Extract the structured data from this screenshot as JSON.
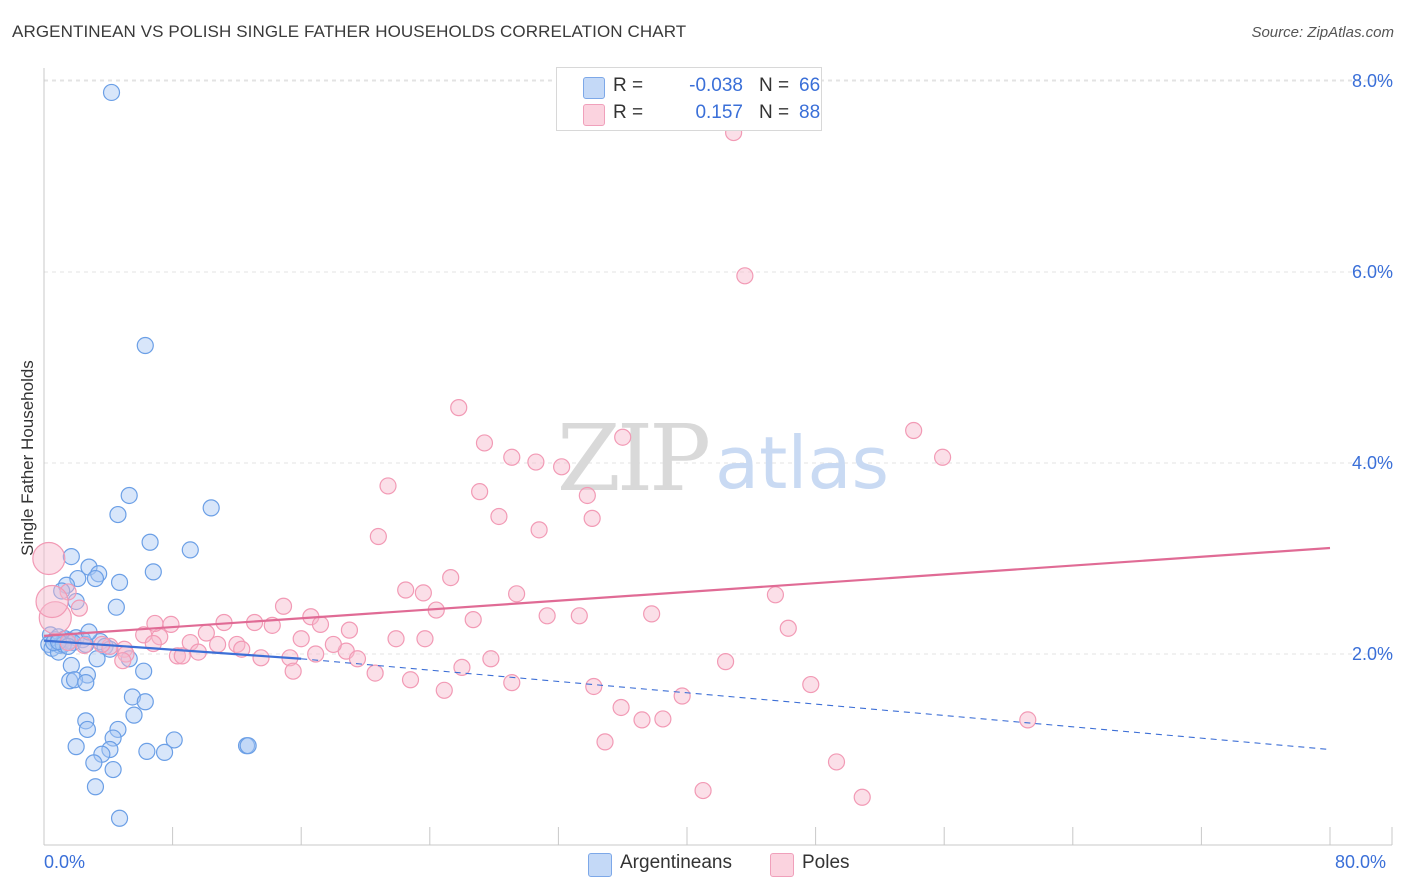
{
  "title": "ARGENTINEAN VS POLISH SINGLE FATHER HOUSEHOLDS CORRELATION CHART",
  "source": "Source: ZipAtlas.com",
  "watermark": {
    "zip": "ZIP",
    "atlas": "atlas"
  },
  "legend": {
    "rows": [
      {
        "r_label": "R =",
        "r_value": "-0.038",
        "n_label": "N =",
        "n_value": "66",
        "color": "#a9c8f4"
      },
      {
        "r_label": "R =",
        "r_value": "0.157",
        "n_label": "N =",
        "n_value": "88",
        "color": "#f7b8cc"
      }
    ]
  },
  "bottom_legend": [
    {
      "label": "Argentineans",
      "color": "#a9c8f4"
    },
    {
      "label": "Poles",
      "color": "#f7b8cc"
    }
  ],
  "x_axis": {
    "min_label": "0.0%",
    "max_label": "80.0%"
  },
  "chart_data": {
    "type": "scatter",
    "title": "ARGENTINEAN VS POLISH SINGLE FATHER HOUSEHOLDS CORRELATION CHART",
    "xlabel": "",
    "ylabel": "Single Father Households",
    "xlim": [
      0,
      80
    ],
    "ylim": [
      0,
      8
    ],
    "y_ticks": [
      2,
      4,
      6,
      8
    ],
    "y_tick_labels": [
      "2.0%",
      "4.0%",
      "6.0%",
      "8.0%"
    ],
    "grid": true,
    "series": [
      {
        "name": "Argentineans",
        "color": "#6b9fe6",
        "fill": "#a9c8f4",
        "trend": {
          "x0": 0,
          "y0": 2.14,
          "x1": 16,
          "y1": 1.95,
          "dash_to_x": 80,
          "dash_to_y": 1.0,
          "stroke": "#3d6fd6"
        },
        "points": [
          [
            4.2,
            7.88
          ],
          [
            6.3,
            5.23
          ],
          [
            5.3,
            3.66
          ],
          [
            10.4,
            3.53
          ],
          [
            4.6,
            3.46
          ],
          [
            6.6,
            3.17
          ],
          [
            9.1,
            3.09
          ],
          [
            1.7,
            3.02
          ],
          [
            2.8,
            2.91
          ],
          [
            3.4,
            2.84
          ],
          [
            6.8,
            2.86
          ],
          [
            3.2,
            2.79
          ],
          [
            2.1,
            2.79
          ],
          [
            4.7,
            2.75
          ],
          [
            1.4,
            2.72
          ],
          [
            1.1,
            2.66
          ],
          [
            2.0,
            2.55
          ],
          [
            4.5,
            2.49
          ],
          [
            0.4,
            2.2
          ],
          [
            0.7,
            2.15
          ],
          [
            0.9,
            2.18
          ],
          [
            1.3,
            2.16
          ],
          [
            1.6,
            2.14
          ],
          [
            2.0,
            2.17
          ],
          [
            2.4,
            2.15
          ],
          [
            0.3,
            2.1
          ],
          [
            0.5,
            2.06
          ],
          [
            1.0,
            2.09
          ],
          [
            1.8,
            2.12
          ],
          [
            2.6,
            2.1
          ],
          [
            3.5,
            2.13
          ],
          [
            3.8,
            2.08
          ],
          [
            4.1,
            2.05
          ],
          [
            2.8,
            2.23
          ],
          [
            0.9,
            2.02
          ],
          [
            0.6,
            2.12
          ],
          [
            1.2,
            2.1
          ],
          [
            5.3,
            1.95
          ],
          [
            3.3,
            1.95
          ],
          [
            1.7,
            1.88
          ],
          [
            6.2,
            1.82
          ],
          [
            2.7,
            1.78
          ],
          [
            1.6,
            1.72
          ],
          [
            1.9,
            1.73
          ],
          [
            2.6,
            1.7
          ],
          [
            5.5,
            1.55
          ],
          [
            6.3,
            1.5
          ],
          [
            5.6,
            1.36
          ],
          [
            2.6,
            1.3
          ],
          [
            2.7,
            1.21
          ],
          [
            4.6,
            1.21
          ],
          [
            4.3,
            1.12
          ],
          [
            8.1,
            1.1
          ],
          [
            12.6,
            1.04
          ],
          [
            12.7,
            1.04
          ],
          [
            2.0,
            1.03
          ],
          [
            4.1,
            1.0
          ],
          [
            6.4,
            0.98
          ],
          [
            7.5,
            0.97
          ],
          [
            3.6,
            0.95
          ],
          [
            3.1,
            0.86
          ],
          [
            4.3,
            0.79
          ],
          [
            3.2,
            0.61
          ],
          [
            4.7,
            0.28
          ],
          [
            0.9,
            2.13
          ],
          [
            1.5,
            2.08
          ]
        ]
      },
      {
        "name": "Poles",
        "color": "#f29ab5",
        "fill": "#f7b8cc",
        "trend": {
          "x0": 0,
          "y0": 2.19,
          "x1": 80,
          "y1": 3.11,
          "stroke": "#e06b95"
        },
        "points": [
          [
            42.9,
            7.46
          ],
          [
            43.6,
            5.96
          ],
          [
            25.8,
            4.58
          ],
          [
            54.1,
            4.34
          ],
          [
            27.4,
            4.21
          ],
          [
            36.0,
            4.27
          ],
          [
            29.1,
            4.06
          ],
          [
            55.9,
            4.06
          ],
          [
            30.6,
            4.01
          ],
          [
            32.2,
            3.96
          ],
          [
            21.4,
            3.76
          ],
          [
            27.1,
            3.7
          ],
          [
            33.8,
            3.66
          ],
          [
            28.3,
            3.44
          ],
          [
            34.1,
            3.42
          ],
          [
            30.8,
            3.3
          ],
          [
            20.8,
            3.23
          ],
          [
            25.3,
            2.8
          ],
          [
            22.5,
            2.67
          ],
          [
            23.6,
            2.64
          ],
          [
            29.4,
            2.63
          ],
          [
            45.5,
            2.62
          ],
          [
            14.9,
            2.5
          ],
          [
            24.4,
            2.46
          ],
          [
            31.3,
            2.4
          ],
          [
            33.3,
            2.4
          ],
          [
            37.8,
            2.42
          ],
          [
            16.6,
            2.39
          ],
          [
            11.2,
            2.33
          ],
          [
            13.1,
            2.33
          ],
          [
            7.9,
            2.31
          ],
          [
            14.2,
            2.3
          ],
          [
            17.2,
            2.31
          ],
          [
            19.0,
            2.25
          ],
          [
            46.3,
            2.27
          ],
          [
            6.2,
            2.2
          ],
          [
            7.2,
            2.18
          ],
          [
            10.1,
            2.22
          ],
          [
            16.0,
            2.16
          ],
          [
            21.9,
            2.16
          ],
          [
            23.7,
            2.16
          ],
          [
            12.0,
            2.1
          ],
          [
            6.8,
            2.11
          ],
          [
            10.8,
            2.1
          ],
          [
            9.1,
            2.12
          ],
          [
            5.0,
            2.05
          ],
          [
            4.1,
            2.08
          ],
          [
            2.5,
            2.09
          ],
          [
            1.5,
            2.12
          ],
          [
            2.2,
            2.48
          ],
          [
            1.5,
            2.65
          ],
          [
            0.7,
            2.38
          ],
          [
            0.3,
            3.0
          ],
          [
            0.5,
            2.55
          ],
          [
            18.8,
            2.03
          ],
          [
            16.9,
            2.0
          ],
          [
            5.1,
            2.0
          ],
          [
            8.3,
            1.98
          ],
          [
            13.5,
            1.96
          ],
          [
            15.3,
            1.96
          ],
          [
            19.5,
            1.95
          ],
          [
            8.6,
            1.98
          ],
          [
            4.9,
            1.93
          ],
          [
            27.8,
            1.95
          ],
          [
            42.4,
            1.92
          ],
          [
            26.0,
            1.86
          ],
          [
            15.5,
            1.82
          ],
          [
            20.6,
            1.8
          ],
          [
            22.8,
            1.73
          ],
          [
            29.1,
            1.7
          ],
          [
            34.2,
            1.66
          ],
          [
            47.7,
            1.68
          ],
          [
            24.9,
            1.62
          ],
          [
            39.7,
            1.56
          ],
          [
            35.9,
            1.44
          ],
          [
            38.5,
            1.32
          ],
          [
            61.2,
            1.31
          ],
          [
            37.2,
            1.31
          ],
          [
            34.9,
            1.08
          ],
          [
            49.3,
            0.87
          ],
          [
            41.0,
            0.57
          ],
          [
            50.9,
            0.5
          ],
          [
            3.6,
            2.1
          ],
          [
            6.9,
            2.32
          ],
          [
            12.3,
            2.05
          ],
          [
            9.6,
            2.02
          ],
          [
            18.0,
            2.1
          ],
          [
            26.7,
            2.36
          ]
        ]
      }
    ]
  }
}
